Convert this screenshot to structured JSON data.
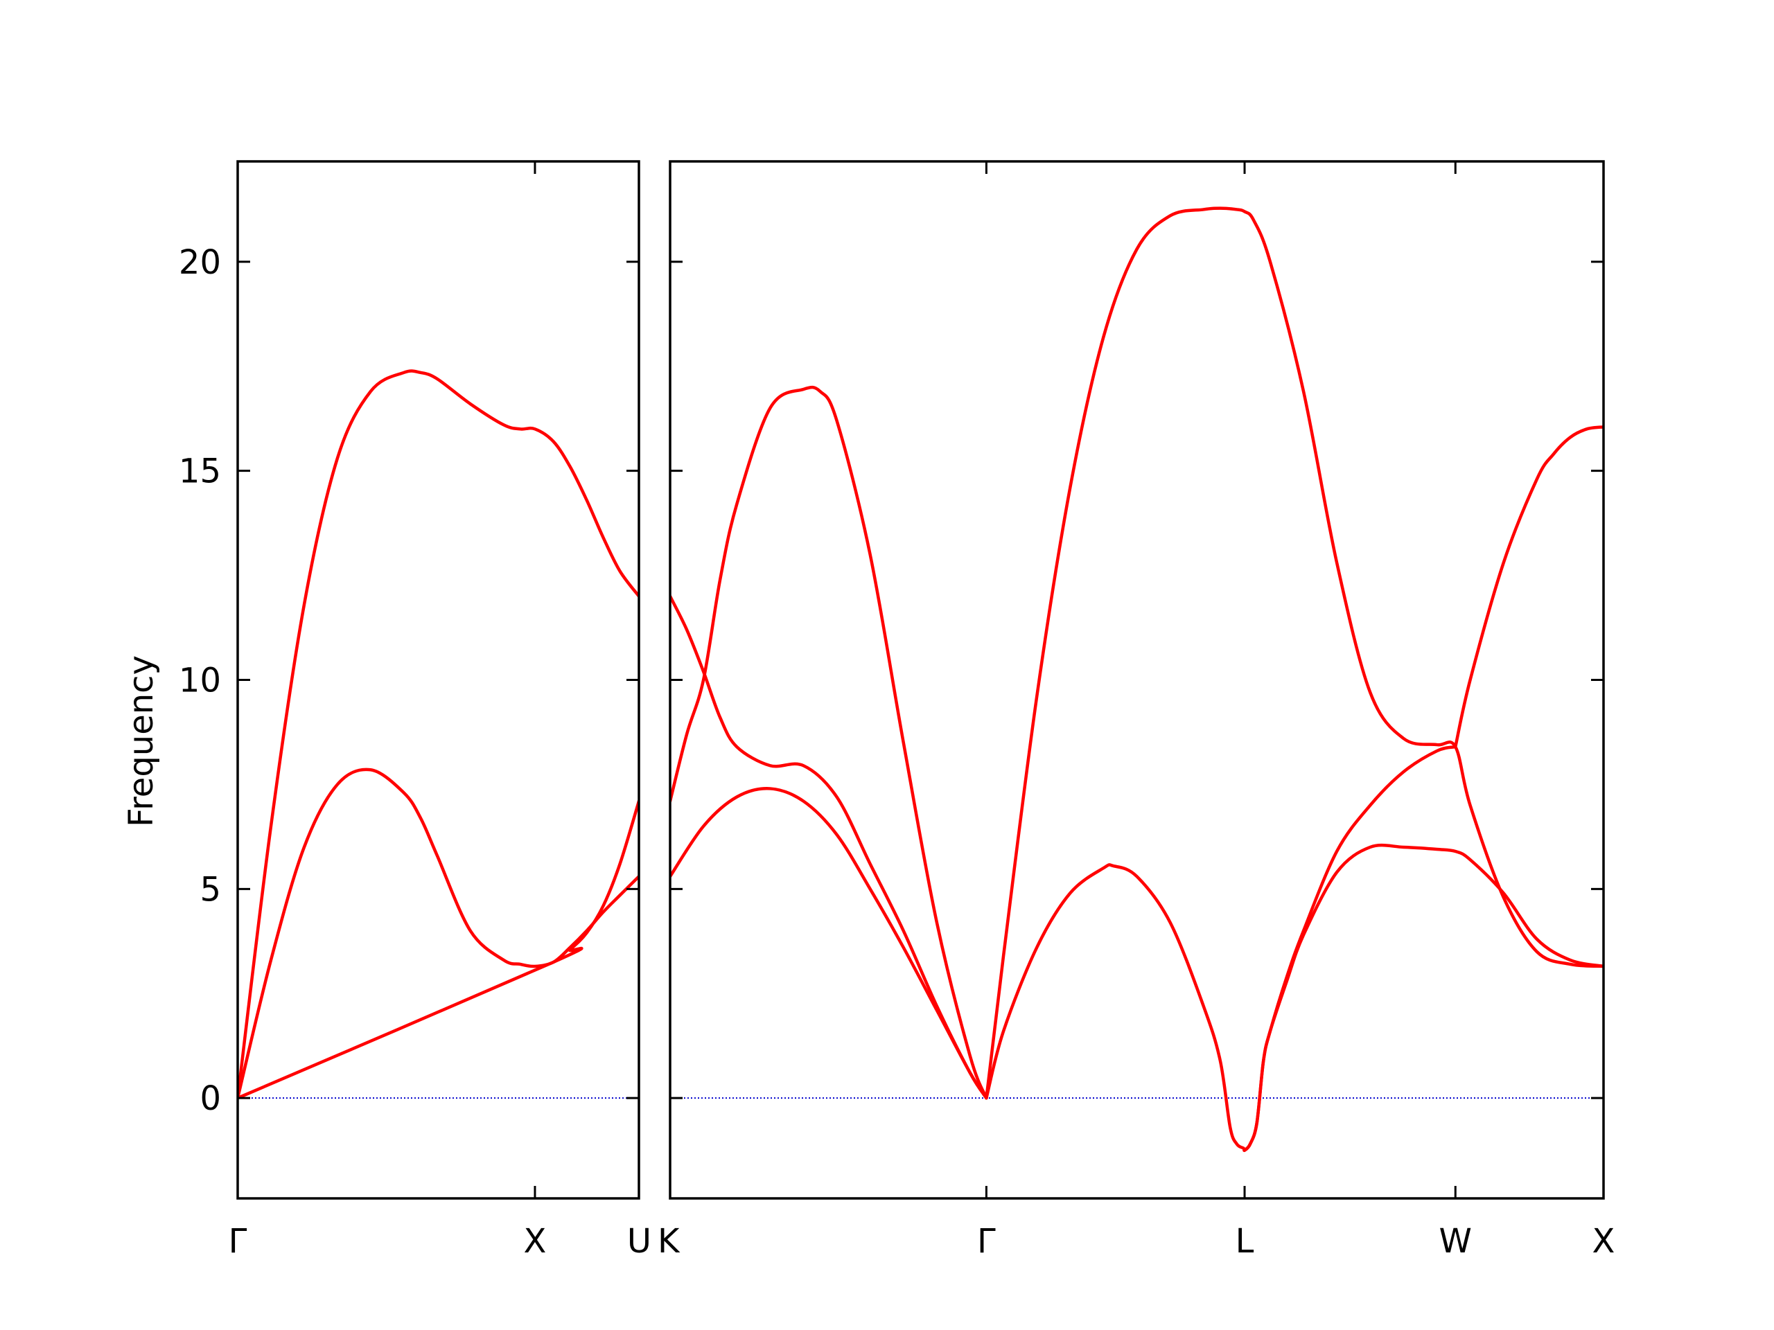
{
  "chart_data": {
    "type": "line",
    "ylabel": "Frequency",
    "ylim": [
      -2.4,
      22.4
    ],
    "yticks": [
      0,
      5,
      10,
      15,
      20
    ],
    "grid": false,
    "colors": {
      "bands": "#ff0000",
      "zero_line": "#0000cc",
      "axes": "#000000"
    },
    "panels": [
      {
        "xlim": [
          0,
          1.2071
        ],
        "xticks": [
          {
            "x": 0,
            "label": "Γ"
          },
          {
            "x": 0.8943,
            "label": "X"
          },
          {
            "x": 1.2071,
            "label": "U"
          }
        ],
        "series": [
          {
            "x": [
              0,
              0.1,
              0.2,
              0.3,
              0.4,
              0.5,
              0.55,
              0.6,
              0.7,
              0.8,
              0.85,
              0.8943,
              0.95,
              1.0,
              1.05,
              1.1,
              1.15,
              1.2071
            ],
            "y": [
              0,
              3.3,
              6.0,
              7.5,
              7.85,
              7.3,
              6.7,
              5.8,
              4.0,
              3.3,
              3.2,
              3.15,
              3.25,
              3.6,
              4.0,
              4.45,
              4.85,
              5.3
            ]
          },
          {
            "x": [
              0,
              0.95,
              1.0,
              1.05,
              1.1,
              1.15,
              1.2071
            ],
            "y": [
              0,
              3.25,
              3.55,
              3.95,
              4.6,
              5.6,
              7.1
            ]
          },
          {
            "x": [
              0,
              0.1,
              0.2,
              0.3,
              0.4,
              0.5,
              0.55,
              0.6,
              0.7,
              0.8,
              0.85,
              0.8943,
              0.95,
              1.0,
              1.05,
              1.1,
              1.15,
              1.2071
            ],
            "y": [
              0,
              6.5,
              11.8,
              15.3,
              16.9,
              17.35,
              17.35,
              17.2,
              16.6,
              16.1,
              16.0,
              16.0,
              15.7,
              15.1,
              14.3,
              13.4,
              12.6,
              12.0
            ]
          }
        ]
      },
      {
        "xlim": [
          0,
          2.8
        ],
        "xticks": [
          {
            "x": 0,
            "label": "K"
          },
          {
            "x": 0.9487,
            "label": "Γ"
          },
          {
            "x": 1.7233,
            "label": "L"
          },
          {
            "x": 2.3557,
            "label": "W"
          },
          {
            "x": 2.8,
            "label": "X"
          }
        ],
        "series": [
          {
            "x": [
              0,
              0.1,
              0.2,
              0.3,
              0.4,
              0.5,
              0.6,
              0.7,
              0.8,
              0.9,
              0.9487
            ],
            "y": [
              5.3,
              6.5,
              7.2,
              7.4,
              7.1,
              6.3,
              5.0,
              3.6,
              2.1,
              0.6,
              0
            ]
          },
          {
            "x": [
              0,
              0.05,
              0.1,
              0.15,
              0.2,
              0.3,
              0.4,
              0.5,
              0.6,
              0.7,
              0.8,
              0.9,
              0.9487
            ],
            "y": [
              12.0,
              11.2,
              10.2,
              9.1,
              8.4,
              7.95,
              7.95,
              7.2,
              5.6,
              4.0,
              2.2,
              0.6,
              0
            ]
          },
          {
            "x": [
              0,
              0.05,
              0.1,
              0.15,
              0.2,
              0.3,
              0.4,
              0.45,
              0.5,
              0.6,
              0.7,
              0.8,
              0.9,
              0.9487
            ],
            "y": [
              7.1,
              8.7,
              10.0,
              12.4,
              14.2,
              16.5,
              16.95,
              16.9,
              16.2,
              13.0,
              8.5,
              4.2,
              1.0,
              0
            ]
          },
          {
            "x": [
              0.9487,
              1.0,
              1.1,
              1.2,
              1.3,
              1.33,
              1.4,
              1.5,
              1.6,
              1.65,
              1.68,
              1.7,
              1.72,
              1.7233,
              1.74,
              1.76,
              1.78,
              1.8,
              1.85,
              1.9,
              2.0,
              2.1,
              2.2,
              2.3,
              2.3557,
              2.4,
              2.5,
              2.6,
              2.7,
              2.8
            ],
            "y": [
              0,
              1.6,
              3.6,
              4.9,
              5.5,
              5.55,
              5.3,
              4.2,
              2.2,
              0.9,
              -0.7,
              -1.1,
              -1.2,
              -1.25,
              -1.1,
              -0.6,
              0.9,
              1.6,
              2.8,
              3.9,
              5.4,
              6.0,
              6.0,
              5.95,
              5.9,
              5.7,
              4.9,
              3.8,
              3.3,
              3.15
            ]
          },
          {
            "x": [
              1.7233,
              1.74,
              1.76,
              1.78,
              1.8,
              1.85,
              1.9,
              2.0,
              2.1,
              2.2,
              2.3,
              2.3557
            ],
            "y": [
              -1.25,
              -1.1,
              -0.6,
              0.9,
              1.6,
              2.9,
              4.0,
              5.9,
              7.0,
              7.8,
              8.3,
              8.4
            ]
          },
          {
            "x": [
              2.3557,
              2.4,
              2.5,
              2.6,
              2.65,
              2.7,
              2.75,
              2.8
            ],
            "y": [
              8.4,
              10.0,
              12.8,
              14.8,
              15.4,
              15.8,
              16.0,
              16.05
            ]
          },
          {
            "x": [
              0.9487,
              1.0,
              1.1,
              1.2,
              1.3,
              1.4,
              1.5,
              1.6,
              1.65,
              1.7,
              1.7233,
              1.75,
              1.8,
              1.9,
              2.0,
              2.1,
              2.2,
              2.3,
              2.3557,
              2.4,
              2.5,
              2.6,
              2.7,
              2.8
            ],
            "y": [
              0,
              3.4,
              9.6,
              14.6,
              18.2,
              20.3,
              21.1,
              21.25,
              21.28,
              21.25,
              21.2,
              21.0,
              20.0,
              16.9,
              12.8,
              9.7,
              8.6,
              8.45,
              8.4,
              7.0,
              4.8,
              3.5,
              3.2,
              3.15
            ]
          }
        ]
      }
    ]
  }
}
